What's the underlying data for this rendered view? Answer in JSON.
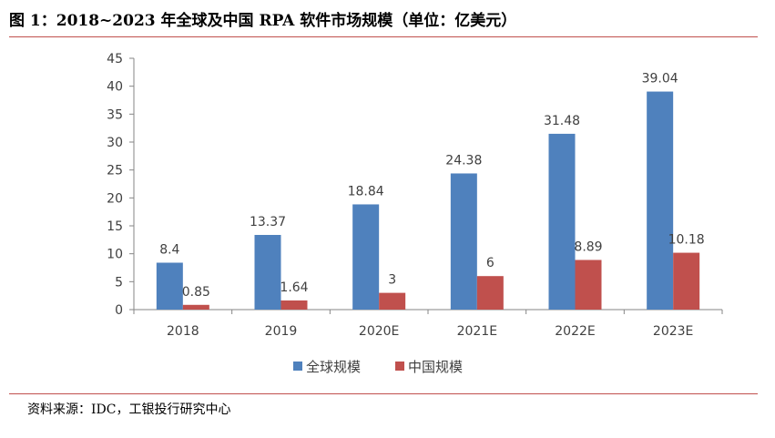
{
  "title": "图 1：2018~2023 年全球及中国 RPA 软件市场规模（单位：亿美元）",
  "source": "资料来源：IDC，工银投行研究中心",
  "colors": {
    "global": "#4f81bd",
    "china": "#c0504d",
    "rule": "#c0504d"
  },
  "chart_data": {
    "type": "bar",
    "title": "2018~2023 年全球及中国 RPA 软件市场规模（单位：亿美元）",
    "xlabel": "",
    "ylabel": "",
    "ylim": [
      0,
      45
    ],
    "yticks": [
      0,
      5,
      10,
      15,
      20,
      25,
      30,
      35,
      40,
      45
    ],
    "grid": false,
    "legend_position": "bottom",
    "categories": [
      "2018",
      "2019",
      "2020E",
      "2021E",
      "2022E",
      "2023E"
    ],
    "series": [
      {
        "name": "全球规模",
        "values": [
          8.4,
          13.37,
          18.84,
          24.38,
          31.48,
          39.04
        ],
        "labels": [
          "8.4",
          "13.37",
          "18.84",
          "24.38",
          "31.48",
          "39.04"
        ]
      },
      {
        "name": "中国规模",
        "values": [
          0.85,
          1.64,
          3,
          6,
          8.89,
          10.18
        ],
        "labels": [
          "0.85",
          "1.64",
          "3",
          "6",
          "8.89",
          "10.18"
        ]
      }
    ]
  }
}
